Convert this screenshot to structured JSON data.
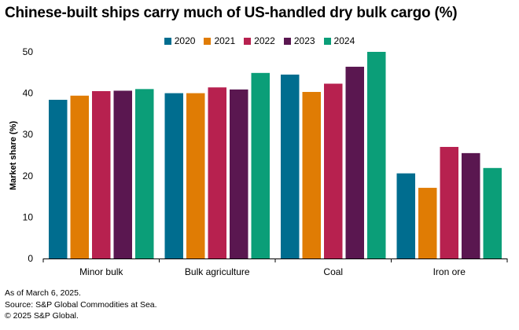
{
  "chart_data": {
    "type": "bar",
    "title": "Chinese-built ships carry much of US-handled dry bulk cargo (%)",
    "xlabel": "",
    "ylabel": "Market share (%)",
    "ylim": [
      0,
      50
    ],
    "yticks": [
      0,
      10,
      20,
      30,
      40,
      50
    ],
    "legend_position": "top-center",
    "categories": [
      "Minor bulk",
      "Bulk agriculture",
      "Coal",
      "Iron ore"
    ],
    "series": [
      {
        "name": "2020",
        "color": "#006d8f",
        "values": [
          38.4,
          40.0,
          44.5,
          20.6
        ]
      },
      {
        "name": "2021",
        "color": "#e07c04",
        "values": [
          39.4,
          40.0,
          40.3,
          17.1
        ]
      },
      {
        "name": "2022",
        "color": "#b7214f",
        "values": [
          40.5,
          41.4,
          42.3,
          27.0
        ]
      },
      {
        "name": "2023",
        "color": "#5a1750",
        "values": [
          40.6,
          40.9,
          46.4,
          25.5
        ]
      },
      {
        "name": "2024",
        "color": "#0b9e78",
        "values": [
          41.0,
          44.9,
          50.0,
          21.9
        ]
      }
    ]
  },
  "footer": {
    "note": "As of March 6, 2025.",
    "source": "Source: S&P Global Commodities at Sea.",
    "copyright": "© 2025 S&P Global."
  }
}
